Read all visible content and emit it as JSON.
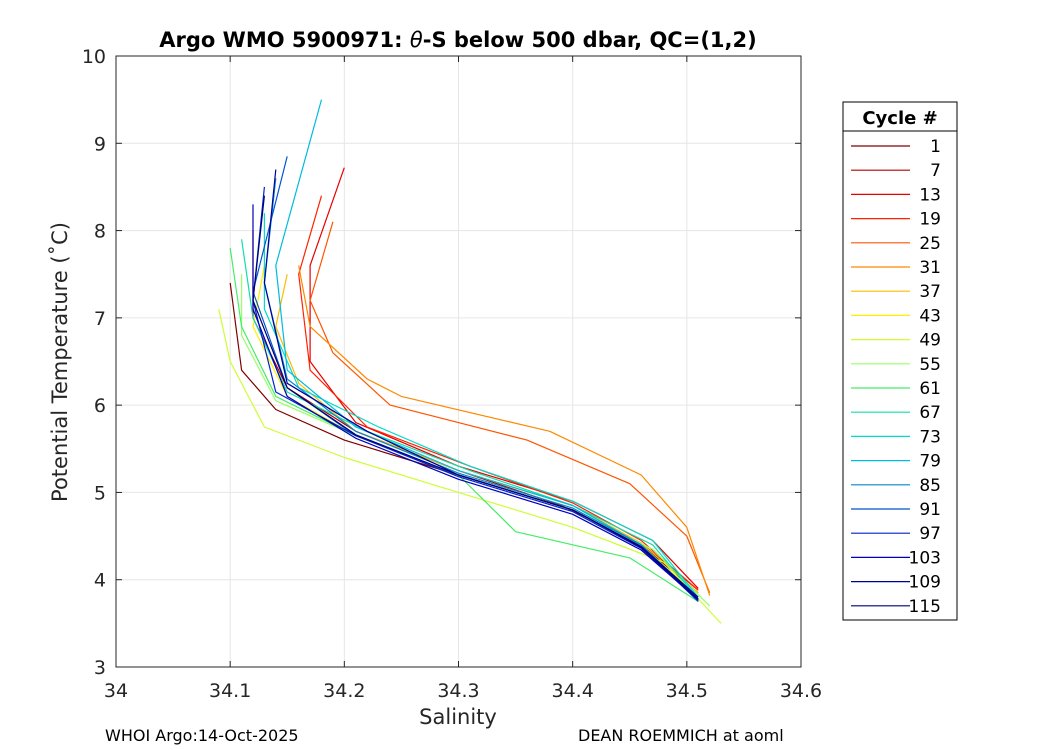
{
  "chart_data": {
    "type": "line",
    "title_prefix": "Argo WMO 5900971: ",
    "title_symbol": "θ",
    "title_suffix": "-S below 500 dbar,  QC=(1,2)",
    "xlabel": "Salinity",
    "ylabel": "Potential Temperature (˚C)",
    "xlim": [
      34.0,
      34.6
    ],
    "ylim": [
      3,
      10
    ],
    "x_ticks": [
      "34",
      "34.1",
      "34.2",
      "34.3",
      "34.4",
      "34.5",
      "34.6"
    ],
    "y_ticks": [
      "3",
      "4",
      "5",
      "6",
      "7",
      "8",
      "9",
      "10"
    ],
    "grid": true,
    "legend_title": "Cycle #",
    "legend_position": "right",
    "series": [
      {
        "name": "1",
        "color": "#800000",
        "x": [
          34.1,
          34.11,
          34.14,
          34.2,
          34.3,
          34.4,
          34.46,
          34.51
        ],
        "y": [
          7.4,
          6.4,
          5.95,
          5.6,
          5.2,
          4.8,
          4.4,
          3.85
        ]
      },
      {
        "name": "7",
        "color": "#b30000",
        "x": [
          34.12,
          34.12,
          34.15,
          34.21,
          34.3,
          34.39,
          34.46,
          34.51
        ],
        "y": [
          8.0,
          7.0,
          6.2,
          5.7,
          5.25,
          4.85,
          4.42,
          3.88
        ]
      },
      {
        "name": "13",
        "color": "#e60000",
        "x": [
          34.2,
          34.17,
          34.17,
          34.21,
          34.3,
          34.4,
          34.47,
          34.51
        ],
        "y": [
          8.72,
          7.6,
          6.5,
          5.8,
          5.3,
          4.9,
          4.45,
          3.9
        ]
      },
      {
        "name": "19",
        "color": "#ff2200",
        "x": [
          34.18,
          34.16,
          34.17,
          34.22,
          34.31,
          34.4,
          34.46,
          34.51
        ],
        "y": [
          8.4,
          7.5,
          6.4,
          5.75,
          5.3,
          4.88,
          4.45,
          3.88
        ]
      },
      {
        "name": "25",
        "color": "#ff5500",
        "x": [
          34.19,
          34.17,
          34.19,
          34.24,
          34.36,
          34.45,
          34.5,
          34.52
        ],
        "y": [
          8.1,
          7.2,
          6.6,
          6.0,
          5.6,
          5.1,
          4.5,
          3.85
        ]
      },
      {
        "name": "31",
        "color": "#ff8800",
        "x": [
          34.16,
          34.17,
          34.22,
          34.25,
          34.38,
          34.46,
          34.5,
          34.52
        ],
        "y": [
          7.6,
          6.9,
          6.3,
          6.1,
          5.7,
          5.2,
          4.6,
          3.82
        ]
      },
      {
        "name": "37",
        "color": "#ffbb00",
        "x": [
          34.15,
          34.14,
          34.16,
          34.21,
          34.3,
          34.4,
          34.46,
          34.51
        ],
        "y": [
          7.5,
          6.9,
          6.25,
          5.7,
          5.25,
          4.85,
          4.42,
          3.85
        ]
      },
      {
        "name": "43",
        "color": "#ffee00",
        "x": [
          34.13,
          34.12,
          34.15,
          34.21,
          34.3,
          34.4,
          34.46,
          34.51
        ],
        "y": [
          7.6,
          6.9,
          6.1,
          5.65,
          5.2,
          4.8,
          4.4,
          3.8
        ]
      },
      {
        "name": "49",
        "color": "#ccff33",
        "x": [
          34.09,
          34.1,
          34.13,
          34.2,
          34.3,
          34.4,
          34.48,
          34.53
        ],
        "y": [
          7.1,
          6.5,
          5.75,
          5.4,
          5.0,
          4.6,
          4.2,
          3.5
        ]
      },
      {
        "name": "55",
        "color": "#99ff66",
        "x": [
          34.11,
          34.11,
          34.14,
          34.21,
          34.3,
          34.4,
          34.47,
          34.52
        ],
        "y": [
          7.5,
          6.8,
          6.05,
          5.65,
          5.2,
          4.8,
          4.35,
          3.7
        ]
      },
      {
        "name": "61",
        "color": "#44ee66",
        "x": [
          34.1,
          34.11,
          34.14,
          34.21,
          34.3,
          34.35,
          34.45,
          34.51
        ],
        "y": [
          7.8,
          6.9,
          6.1,
          5.65,
          5.2,
          4.55,
          4.25,
          3.75
        ]
      },
      {
        "name": "67",
        "color": "#11ddaa",
        "x": [
          34.11,
          34.12,
          34.15,
          34.22,
          34.31,
          34.4,
          34.47,
          34.51
        ],
        "y": [
          7.9,
          7.0,
          6.15,
          5.7,
          5.25,
          4.85,
          4.4,
          3.78
        ]
      },
      {
        "name": "73",
        "color": "#00ddcc",
        "x": [
          34.13,
          34.13,
          34.16,
          34.23,
          34.31,
          34.4,
          34.47,
          34.51
        ],
        "y": [
          8.2,
          7.1,
          6.2,
          5.75,
          5.3,
          4.9,
          4.45,
          3.8
        ]
      },
      {
        "name": "79",
        "color": "#00bbdd",
        "x": [
          34.18,
          34.14,
          34.15,
          34.21,
          34.3,
          34.4,
          34.46,
          34.51
        ],
        "y": [
          9.5,
          7.6,
          6.4,
          5.75,
          5.25,
          4.85,
          4.4,
          3.78
        ]
      },
      {
        "name": "85",
        "color": "#0088cc",
        "x": [
          34.14,
          34.13,
          34.15,
          34.21,
          34.3,
          34.4,
          34.46,
          34.51
        ],
        "y": [
          8.6,
          7.4,
          6.3,
          5.7,
          5.22,
          4.82,
          4.4,
          3.75
        ]
      },
      {
        "name": "91",
        "color": "#0055cc",
        "x": [
          34.15,
          34.12,
          34.15,
          34.21,
          34.3,
          34.4,
          34.46,
          34.51
        ],
        "y": [
          8.85,
          7.3,
          6.2,
          5.65,
          5.2,
          4.8,
          4.38,
          3.75
        ]
      },
      {
        "name": "97",
        "color": "#0022cc",
        "x": [
          34.13,
          34.12,
          34.14,
          34.21,
          34.3,
          34.4,
          34.46,
          34.51
        ],
        "y": [
          8.5,
          7.2,
          6.15,
          5.65,
          5.18,
          4.78,
          4.36,
          3.76
        ]
      },
      {
        "name": "103",
        "color": "#0000bb",
        "x": [
          34.12,
          34.12,
          34.15,
          34.21,
          34.3,
          34.4,
          34.46,
          34.51
        ],
        "y": [
          8.3,
          7.1,
          6.1,
          5.62,
          5.15,
          4.75,
          4.34,
          3.77
        ]
      },
      {
        "name": "109",
        "color": "#000099",
        "x": [
          34.14,
          34.13,
          34.15,
          34.22,
          34.3,
          34.4,
          34.46,
          34.51
        ],
        "y": [
          8.7,
          7.4,
          6.25,
          5.7,
          5.2,
          4.8,
          4.38,
          3.8
        ]
      },
      {
        "name": "115",
        "color": "#000077",
        "x": [
          34.13,
          34.12,
          34.15,
          34.21,
          34.3,
          34.4,
          34.46,
          34.51
        ],
        "y": [
          8.4,
          7.2,
          6.2,
          5.66,
          5.2,
          4.8,
          4.37,
          3.78
        ]
      }
    ]
  },
  "footer": {
    "left": "WHOI Argo:14-Oct-2025",
    "right": "DEAN ROEMMICH at aoml"
  }
}
